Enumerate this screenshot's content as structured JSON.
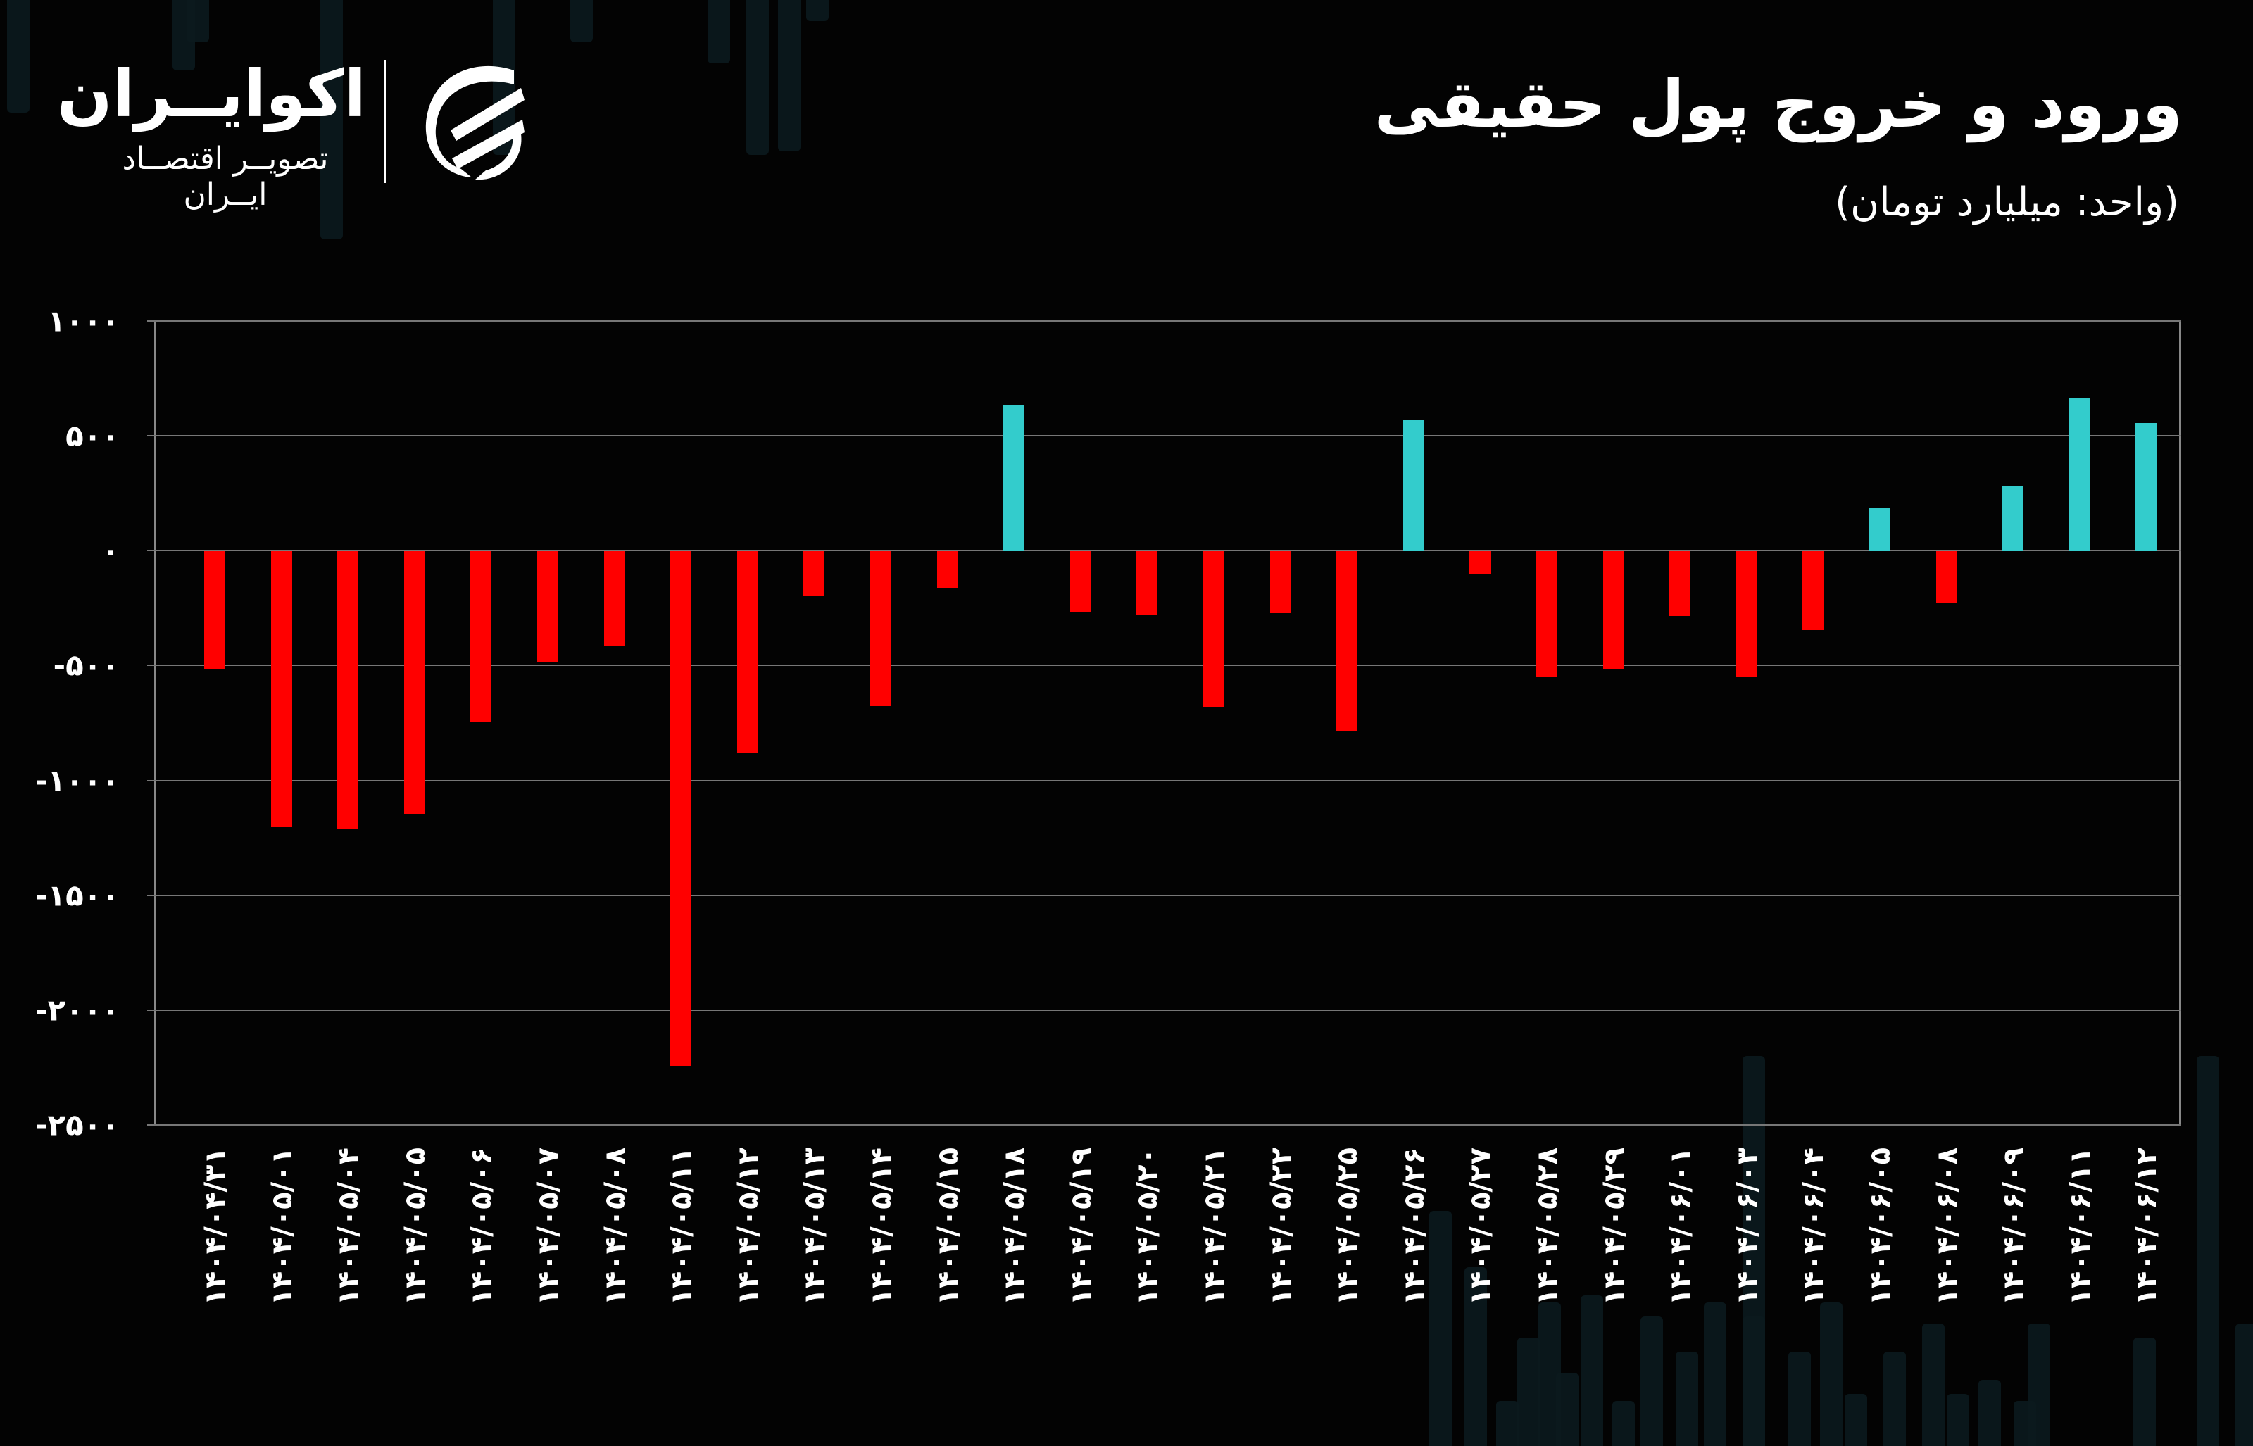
{
  "header": {
    "title": "ورود و خروج پول حقیقی",
    "subtitle": "(واحد: میلیارد تومان)"
  },
  "logo": {
    "name": "اکوایــران",
    "tagline": "تصویــر اقتصــاد ایــران"
  },
  "colors": {
    "background": "#030303",
    "positive": "#33cccc",
    "negative": "#ff0000",
    "grid": "#777777",
    "text": "#ffffff"
  },
  "y_ticks": [
    "۱۰۰۰",
    "۵۰۰",
    "۰",
    "-۵۰۰",
    "-۱۰۰۰",
    "-۱۵۰۰",
    "-۲۰۰۰",
    "-۲۵۰۰"
  ],
  "chart_data": {
    "type": "bar",
    "title": "ورود و خروج پول حقیقی",
    "subtitle": "(واحد: میلیارد تومان)",
    "xlabel": "",
    "ylabel": "میلیارد تومان",
    "ylim": [
      -2500,
      1000
    ],
    "yticks": [
      1000,
      500,
      0,
      -500,
      -1000,
      -1500,
      -2000,
      -2500
    ],
    "grid": true,
    "legend": "none",
    "categories": [
      "1404/04/31",
      "1404/05/01",
      "1404/05/04",
      "1404/05/05",
      "1404/05/06",
      "1404/05/07",
      "1404/05/08",
      "1404/05/11",
      "1404/05/12",
      "1404/05/13",
      "1404/05/14",
      "1404/05/15",
      "1404/05/18",
      "1404/05/19",
      "1404/05/20",
      "1404/05/21",
      "1404/05/22",
      "1404/05/25",
      "1404/05/26",
      "1404/05/27",
      "1404/05/28",
      "1404/05/29",
      "1404/06/01",
      "1404/06/03",
      "1404/06/04",
      "1404/06/05",
      "1404/06/08",
      "1404/06/09",
      "1404/06/11",
      "1404/06/12"
    ],
    "categories_display": [
      "۱۴۰۴/۰۴/۳۱",
      "۱۴۰۴/۰۵/۰۱",
      "۱۴۰۴/۰۵/۰۴",
      "۱۴۰۴/۰۵/۰۵",
      "۱۴۰۴/۰۵/۰۶",
      "۱۴۰۴/۰۵/۰۷",
      "۱۴۰۴/۰۵/۰۸",
      "۱۴۰۴/۰۵/۱۱",
      "۱۴۰۴/۰۵/۱۲",
      "۱۴۰۴/۰۵/۱۳",
      "۱۴۰۴/۰۵/۱۴",
      "۱۴۰۴/۰۵/۱۵",
      "۱۴۰۴/۰۵/۱۸",
      "۱۴۰۴/۰۵/۱۹",
      "۱۴۰۴/۰۵/۲۰",
      "۱۴۰۴/۰۵/۲۱",
      "۱۴۰۴/۰۵/۲۲",
      "۱۴۰۴/۰۵/۲۵",
      "۱۴۰۴/۰۵/۲۶",
      "۱۴۰۴/۰۵/۲۷",
      "۱۴۰۴/۰۵/۲۸",
      "۱۴۰۴/۰۵/۲۹",
      "۱۴۰۴/۰۶/۰۱",
      "۱۴۰۴/۰۶/۰۳",
      "۱۴۰۴/۰۶/۰۴",
      "۱۴۰۴/۰۶/۰۵",
      "۱۴۰۴/۰۶/۰۸",
      "۱۴۰۴/۰۶/۰۹",
      "۱۴۰۴/۰۶/۱۱",
      "۱۴۰۴/۰۶/۱۲"
    ],
    "values": [
      -518,
      -1204,
      -1214,
      -1146,
      -745,
      -483,
      -415,
      -2244,
      -878,
      -199,
      -675,
      -161,
      635,
      -267,
      -280,
      -679,
      -273,
      -786,
      567,
      -104,
      -547,
      -518,
      -284,
      -551,
      -345,
      184,
      -229,
      281,
      662,
      555
    ]
  }
}
